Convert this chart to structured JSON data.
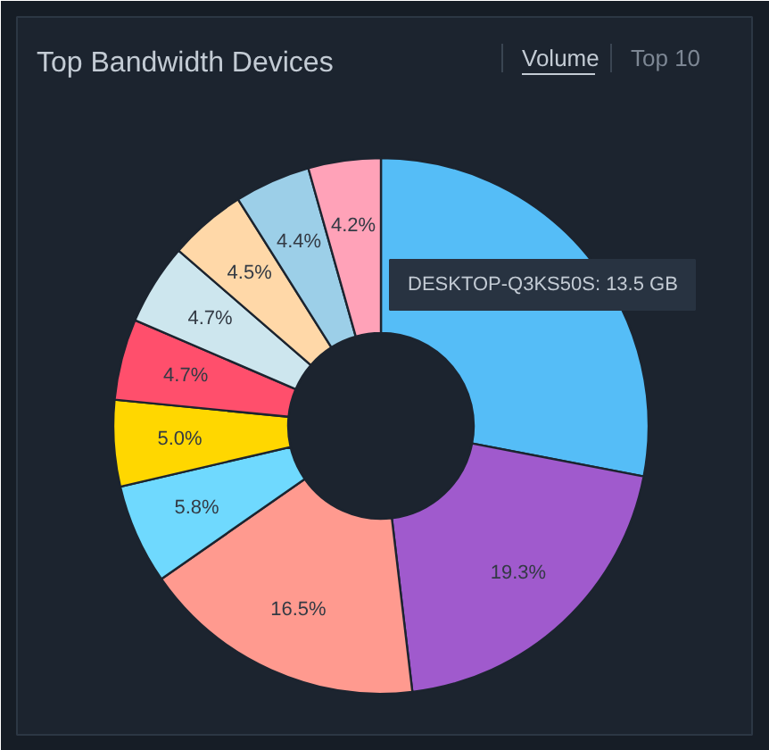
{
  "chart_data": {
    "type": "donut",
    "title": "Top Bandwidth Devices",
    "categories": [
      null,
      null,
      null,
      null,
      null,
      null,
      null,
      null,
      null,
      null
    ],
    "values": [
      26.9,
      19.3,
      16.5,
      5.8,
      5.0,
      4.7,
      4.7,
      4.5,
      4.4,
      4.2
    ],
    "colors": [
      "#55bdf7",
      "#a05acd",
      "#ff9a8f",
      "#6fd9fe",
      "#ffd700",
      "#ff4f6c",
      "#cde6ee",
      "#ffd8a8",
      "#9ccfe8",
      "#ffa2b8"
    ],
    "value_labels": [
      null,
      "19.3%",
      "16.5%",
      "5.8%",
      "5.0%",
      "4.7%",
      "4.7%",
      "4.5%",
      "4.4%",
      "4.2%"
    ],
    "annotations": [
      "Volume",
      "Top 10",
      "DESKTOP-Q3KS50S: 13.5 GB"
    ]
  }
}
